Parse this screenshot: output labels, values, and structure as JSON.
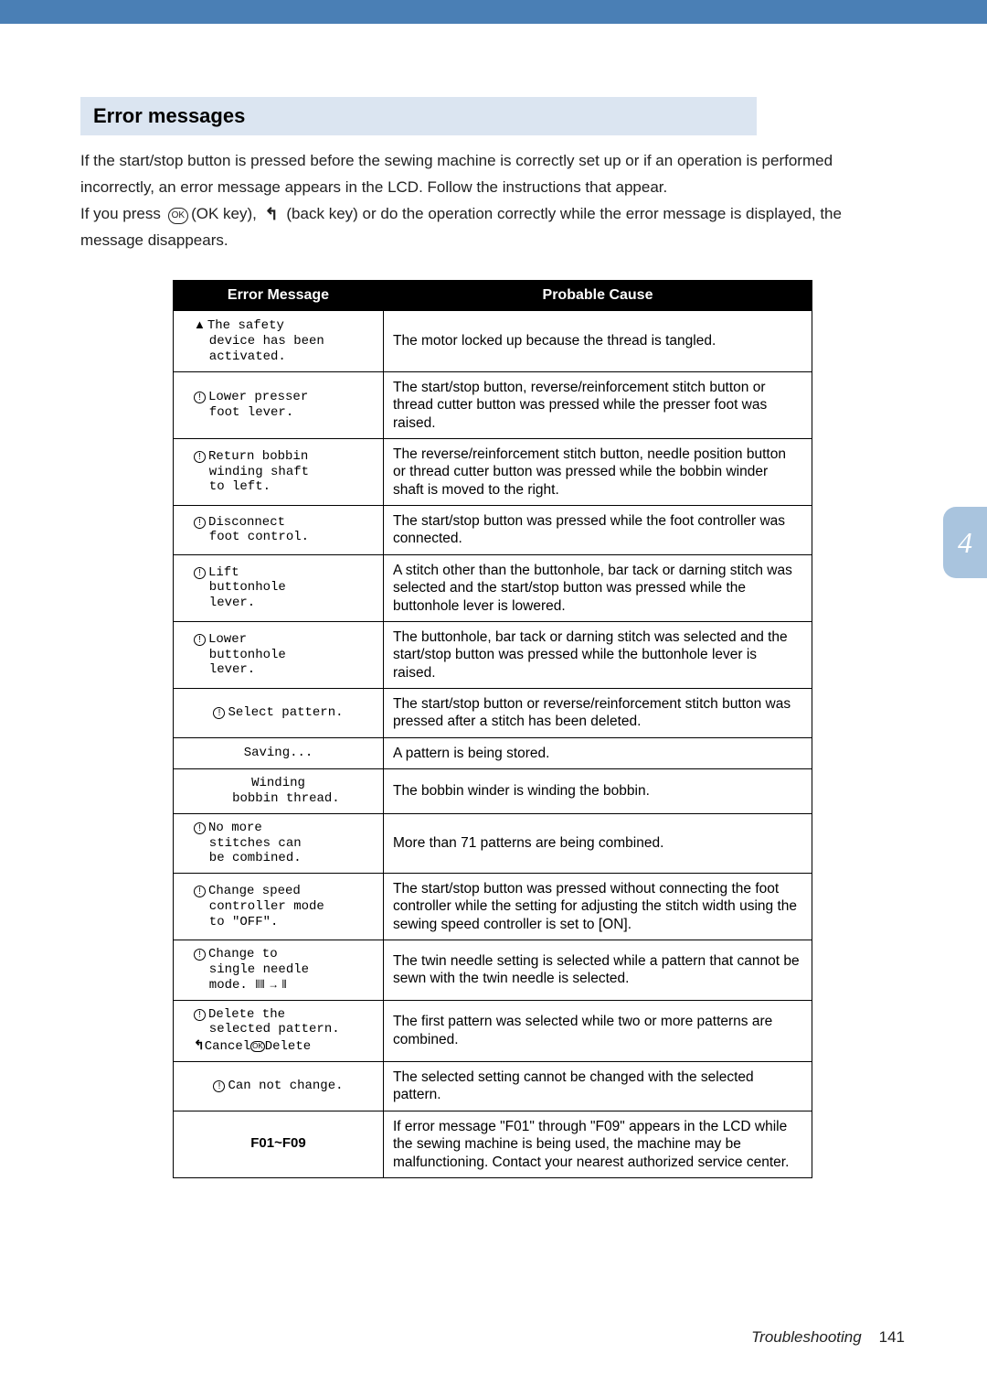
{
  "colors": {
    "topbar": "#4a7fb5",
    "heading_bg": "#dbe5f1",
    "sidetab_bg": "#a9c4de",
    "text": "#222222",
    "border": "#000000",
    "header_bg": "#000000",
    "header_text": "#ffffff",
    "page_bg": "#ffffff"
  },
  "heading": "Error messages",
  "intro_line1": "If the start/stop button is pressed before the sewing machine is correctly set up or if an operation is performed",
  "intro_line2": "incorrectly, an error message appears in the LCD. Follow the instructions that appear.",
  "intro_line3a": "If you press ",
  "intro_line3b": "(OK key), ",
  "intro_line3c": " (back key) or do the operation correctly while the error message is displayed, the",
  "intro_line4": "message disappears.",
  "ok_label": "OK",
  "table": {
    "headers": [
      "Error Message",
      "Probable Cause"
    ],
    "rows": [
      {
        "err_icon": "warn",
        "err_lines": [
          "The safety",
          "device has been",
          "activated."
        ],
        "center": false,
        "cause": "The motor locked up because the thread is tangled."
      },
      {
        "err_icon": "info",
        "err_lines": [
          "Lower presser",
          "foot lever."
        ],
        "center": false,
        "cause": "The start/stop button, reverse/reinforcement stitch button or thread cutter button was pressed while the presser foot was raised."
      },
      {
        "err_icon": "info",
        "err_lines": [
          "Return bobbin",
          "winding shaft",
          "to left."
        ],
        "center": false,
        "cause": "The reverse/reinforcement stitch button, needle position button or thread cutter button was pressed while the bobbin winder shaft is moved to the right."
      },
      {
        "err_icon": "info",
        "err_lines": [
          "Disconnect",
          "foot control."
        ],
        "center": false,
        "cause": "The start/stop button was pressed while the foot controller was connected."
      },
      {
        "err_icon": "info",
        "err_lines": [
          "Lift",
          "buttonhole",
          "lever."
        ],
        "center": false,
        "cause": "A stitch other than the buttonhole, bar tack or darning stitch was selected and the start/stop button was pressed while the buttonhole lever is lowered."
      },
      {
        "err_icon": "info",
        "err_lines": [
          "Lower",
          "buttonhole",
          "lever."
        ],
        "center": false,
        "cause": "The buttonhole, bar tack or darning stitch was selected and the start/stop button was pressed while the buttonhole lever is raised."
      },
      {
        "err_icon": "info",
        "err_lines": [
          "Select pattern."
        ],
        "center": true,
        "cause": "The start/stop button or reverse/reinforcement stitch button was pressed after a stitch has been deleted."
      },
      {
        "err_icon": "",
        "err_lines": [
          "Saving..."
        ],
        "center": true,
        "cause": "A pattern is being stored."
      },
      {
        "err_icon": "",
        "err_lines": [
          "Winding",
          "bobbin thread."
        ],
        "center": true,
        "cause": "The bobbin winder is winding the bobbin."
      },
      {
        "err_icon": "info",
        "err_lines": [
          "No more",
          "stitches can",
          "be combined."
        ],
        "center": false,
        "cause": "More than 71 patterns are being combined."
      },
      {
        "err_icon": "info",
        "err_lines": [
          "Change speed",
          "controller mode",
          "to \"OFF\"."
        ],
        "center": false,
        "cause": "The start/stop button was pressed without connecting the foot controller while the setting for adjusting the stitch width using the sewing speed controller is set to [ON]."
      },
      {
        "err_icon": "info",
        "err_lines": [
          "Change to",
          "single needle",
          "mode."
        ],
        "center": false,
        "needle": true,
        "cause": "The twin needle setting is selected while a pattern that cannot be sewn with the twin needle is selected."
      },
      {
        "err_icon": "info",
        "err_lines": [
          "Delete the",
          "selected pattern."
        ],
        "center": false,
        "delete_row": true,
        "cause": "The first pattern was selected while two or more patterns are combined."
      },
      {
        "err_icon": "info",
        "err_lines": [
          "Can not change."
        ],
        "center": true,
        "cause": "The selected setting cannot be changed with the selected pattern."
      },
      {
        "err_icon": "",
        "err_lines": [
          "F01~F09"
        ],
        "center": true,
        "f01": true,
        "cause": "If error message \"F01\" through \"F09\" appears in the LCD while the sewing machine is being used, the machine may be malfunctioning. Contact your nearest authorized service center."
      }
    ]
  },
  "sidetab": "4",
  "footer_section": "Troubleshooting",
  "footer_page": "141"
}
